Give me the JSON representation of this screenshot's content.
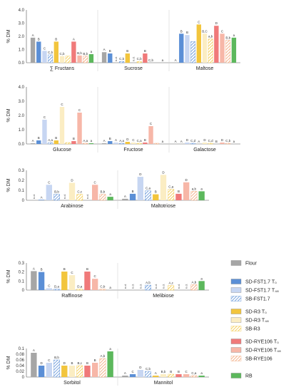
{
  "legend": {
    "entries": [
      {
        "key": "flour",
        "label": "Flour",
        "color": "#a6a6a6",
        "pattern": "solid"
      },
      {
        "key": "sdf_t0",
        "label": "SD-FST1.7 T₀",
        "color": "#5b8fd6",
        "pattern": "solid"
      },
      {
        "key": "sdf_t48",
        "label": "SD-FST1.7 T₄₈",
        "color": "#c7d6f2",
        "pattern": "solid"
      },
      {
        "key": "sbf",
        "label": "SB-FST1.7",
        "color": "#5b8fd6",
        "pattern": "hatch"
      },
      {
        "key": "sdr_t0",
        "label": "SD-R3 T₀",
        "color": "#f2c53d",
        "pattern": "solid"
      },
      {
        "key": "sdr_t48",
        "label": "SD-R3 T₄₈",
        "color": "#fbedc3",
        "pattern": "solid"
      },
      {
        "key": "sbr",
        "label": "SB-R3",
        "color": "#f2c53d",
        "pattern": "hatch"
      },
      {
        "key": "sdy_t0",
        "label": "SD-RYE106 T₀",
        "color": "#f07a7a",
        "pattern": "solid"
      },
      {
        "key": "sdy_t48",
        "label": "SD-RYE106 T₄₈",
        "color": "#f7b7a8",
        "pattern": "solid"
      },
      {
        "key": "sby",
        "label": "SB-RYE106",
        "color": "#f0a070",
        "pattern": "hatch"
      },
      {
        "key": "rb",
        "label": "RB",
        "color": "#5cb85c",
        "pattern": "solid"
      }
    ]
  },
  "chart_data": [
    {
      "type": "bar",
      "ylabel": "% DM",
      "ylim": [
        0,
        4.0
      ],
      "yticks": [
        "0.0",
        "1.0",
        "2.0",
        "3.0",
        "4.0"
      ],
      "groups": [
        {
          "name": "∑ Fructans",
          "values": [
            1.9,
            1.6,
            0.9,
            0.6,
            1.6,
            0.5,
            0.5,
            1.6,
            0.55,
            0.5,
            0.65
          ],
          "letters": [
            "A",
            "B",
            "C",
            "C,b",
            "B",
            "C,b",
            "",
            "A",
            "B,b",
            "B,b",
            "a"
          ]
        },
        {
          "name": "Sucrose",
          "values": [
            0.8,
            0.7,
            0,
            0.1,
            0.7,
            0,
            0.1,
            0.7,
            0,
            0,
            0
          ],
          "letters": [
            "A",
            "B",
            "n.d.",
            "C,b",
            "B",
            "n.d.",
            "C,b",
            "B",
            "C,b",
            "",
            "a"
          ]
        },
        {
          "name": "Maltose",
          "values": [
            0,
            2.2,
            2.1,
            1.6,
            2.9,
            2.2,
            1.8,
            2.8,
            2.2,
            1.7,
            1.9
          ],
          "letters": [
            "A",
            "B",
            "B",
            "",
            "C",
            "B,C",
            "a,b",
            "D",
            "C",
            "B,b",
            "a"
          ]
        }
      ]
    },
    {
      "type": "bar",
      "ylabel": "% DM",
      "ylim": [
        0,
        4.0
      ],
      "yticks": [
        "0.0",
        "1.0",
        "2.0",
        "3.0",
        "4.0"
      ],
      "groups": [
        {
          "name": "Glucose",
          "values": [
            0.05,
            0.25,
            1.7,
            0.1,
            0.25,
            2.6,
            0.1,
            0.2,
            2.2,
            0.05,
            0.05
          ],
          "letters": [
            "A",
            "B",
            "C",
            "A,a",
            "B",
            "C",
            "",
            "B",
            "C",
            "A,a",
            "a"
          ]
        },
        {
          "name": "Fructose",
          "values": [
            0.05,
            0.2,
            0.1,
            0.05,
            0.15,
            0.1,
            0.05,
            0.1,
            1.25,
            0.05,
            0
          ],
          "letters": [
            "A",
            "B",
            "A",
            "A,a",
            "D",
            "C",
            "C,a",
            "B",
            "C",
            "",
            "a"
          ]
        },
        {
          "name": "Galactose",
          "values": [
            0,
            0,
            0.1,
            0.05,
            0,
            0.1,
            0.05,
            0,
            0.1,
            0.05,
            0
          ],
          "letters": [
            "A",
            "A",
            "D",
            "C,d",
            "A",
            "D",
            "C,d",
            "B",
            "D",
            "C,b",
            "a"
          ]
        }
      ]
    },
    {
      "type": "bar",
      "ylabel": "% DM",
      "ylim": [
        0,
        0.3
      ],
      "yticks": [
        "0",
        "0.1",
        "0.2",
        "0.3"
      ],
      "groups": [
        {
          "name": "Arabinose",
          "values": [
            0,
            0.005,
            0.155,
            0.06,
            0,
            0.175,
            0.06,
            0,
            0.155,
            0.06,
            0.035
          ],
          "letters": [
            "n.d.",
            "A",
            "C",
            "B,b",
            "n.d.",
            "D",
            "C,c",
            "n.d.",
            "C",
            "B,b",
            "a"
          ]
        },
        {
          "name": "Maltotriose",
          "values": [
            0.015,
            0.065,
            0.235,
            0.095,
            0.06,
            0.255,
            0.11,
            0.065,
            0.18,
            0.09,
            0.09
          ],
          "letters": [
            "A",
            "B",
            "D",
            "C,a",
            "B",
            "D",
            "C,a",
            "B",
            "D",
            "a,b",
            "a"
          ]
        }
      ]
    },
    {
      "type": "bar",
      "ylabel": "% DM",
      "ylim": [
        0,
        0.3
      ],
      "yticks": [
        "0",
        "0.1",
        "0.2",
        "0.3"
      ],
      "groups": [
        {
          "name": "Raffinose",
          "values": [
            0.21,
            0.2,
            0.02,
            0.01,
            0.205,
            0.165,
            0.01,
            0.205,
            0.125,
            0.01,
            0
          ],
          "letters": [
            "A",
            "B",
            "C",
            "D,a",
            "B",
            "C",
            "D,a",
            "B",
            "C",
            "C,b",
            "a"
          ]
        },
        {
          "name": "Melibiose",
          "values": [
            0,
            0,
            0,
            0.055,
            0,
            0,
            0.05,
            0,
            0,
            0.06,
            0.1
          ],
          "letters": [
            "n.d.",
            "n.d.",
            "n.d.",
            "A,b",
            "n.d.",
            "n.d.",
            "A,c",
            "n.d.",
            "n.d.",
            "A,b",
            "a"
          ]
        }
      ]
    },
    {
      "type": "bar",
      "ylabel": "% DM",
      "ylim": [
        0,
        0.1
      ],
      "yticks": [
        "0",
        "0.02",
        "0.04",
        "0.06",
        "0.08",
        "0.1"
      ],
      "groups": [
        {
          "name": "Sorbitol",
          "values": [
            0.085,
            0.04,
            0.05,
            0.06,
            0.04,
            0.04,
            0.04,
            0.04,
            0.05,
            0.065,
            0.09
          ],
          "letters": [
            "A",
            "D",
            "C",
            "B,b",
            "D",
            "B",
            "B,c",
            "B",
            "B",
            "A,b",
            "a"
          ]
        },
        {
          "name": "Mannitol",
          "values": [
            0.005,
            0.01,
            0.025,
            0.02,
            0.005,
            0.01,
            0.01,
            0.01,
            0.01,
            0.005,
            0.005
          ],
          "letters": [
            "A",
            "C",
            "D",
            "C,b",
            "A",
            "B,b",
            "B",
            "B",
            "C",
            "C,a",
            "a"
          ]
        }
      ]
    }
  ]
}
